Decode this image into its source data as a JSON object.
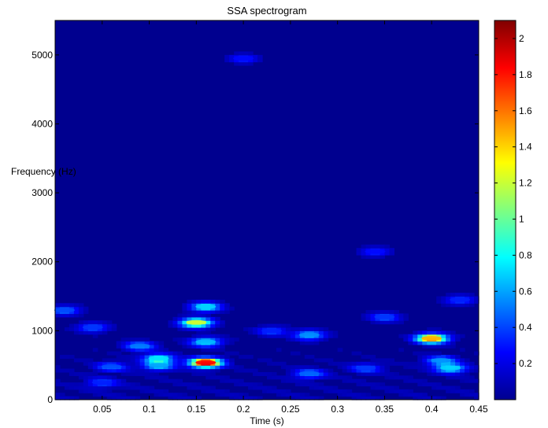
{
  "chart_data": {
    "type": "heatmap",
    "title": "SSA spectrogram",
    "xlabel": "Time (s)",
    "ylabel": "Frequency (Hz)",
    "xlim": [
      0,
      0.45
    ],
    "ylim": [
      0,
      5500
    ],
    "x_ticks": [
      0.05,
      0.1,
      0.15,
      0.2,
      0.25,
      0.3,
      0.35,
      0.4,
      0.45
    ],
    "x_tick_labels": [
      "0.05",
      "0.1",
      "0.15",
      "0.2",
      "0.25",
      "0.3",
      "0.35",
      "0.4",
      "0.45"
    ],
    "y_ticks": [
      0,
      1000,
      2000,
      3000,
      4000,
      5000
    ],
    "y_tick_labels": [
      "0",
      "1000",
      "2000",
      "3000",
      "4000",
      "5000"
    ],
    "colorbar": {
      "colormap": "jet",
      "clim": [
        0,
        2.1
      ],
      "ticks": [
        0.2,
        0.4,
        0.6,
        0.8,
        1,
        1.2,
        1.4,
        1.6,
        1.8,
        2
      ],
      "tick_labels": [
        "0.2",
        "0.4",
        "0.6",
        "0.8",
        "1",
        "1.2",
        "1.4",
        "1.6",
        "1.8",
        "2"
      ]
    },
    "background_value": 0.05,
    "hotspots": [
      {
        "t": 0.16,
        "f": 540,
        "value": 2.0
      },
      {
        "t": 0.15,
        "f": 1120,
        "value": 1.3
      },
      {
        "t": 0.4,
        "f": 890,
        "value": 1.6
      },
      {
        "t": 0.16,
        "f": 840,
        "value": 0.7
      },
      {
        "t": 0.16,
        "f": 1350,
        "value": 0.75
      },
      {
        "t": 0.11,
        "f": 600,
        "value": 0.8
      },
      {
        "t": 0.11,
        "f": 500,
        "value": 0.65
      },
      {
        "t": 0.09,
        "f": 780,
        "value": 0.55
      },
      {
        "t": 0.27,
        "f": 940,
        "value": 0.6
      },
      {
        "t": 0.27,
        "f": 380,
        "value": 0.5
      },
      {
        "t": 0.42,
        "f": 460,
        "value": 0.75
      },
      {
        "t": 0.41,
        "f": 570,
        "value": 0.6
      },
      {
        "t": 0.35,
        "f": 1200,
        "value": 0.4
      },
      {
        "t": 0.33,
        "f": 460,
        "value": 0.4
      },
      {
        "t": 0.06,
        "f": 480,
        "value": 0.45
      },
      {
        "t": 0.04,
        "f": 1050,
        "value": 0.4
      },
      {
        "t": 0.01,
        "f": 1300,
        "value": 0.45
      },
      {
        "t": 0.2,
        "f": 4950,
        "value": 0.3
      },
      {
        "t": 0.34,
        "f": 2150,
        "value": 0.3
      },
      {
        "t": 0.43,
        "f": 1450,
        "value": 0.35
      },
      {
        "t": 0.23,
        "f": 1000,
        "value": 0.35
      },
      {
        "t": 0.05,
        "f": 250,
        "value": 0.35
      }
    ]
  }
}
